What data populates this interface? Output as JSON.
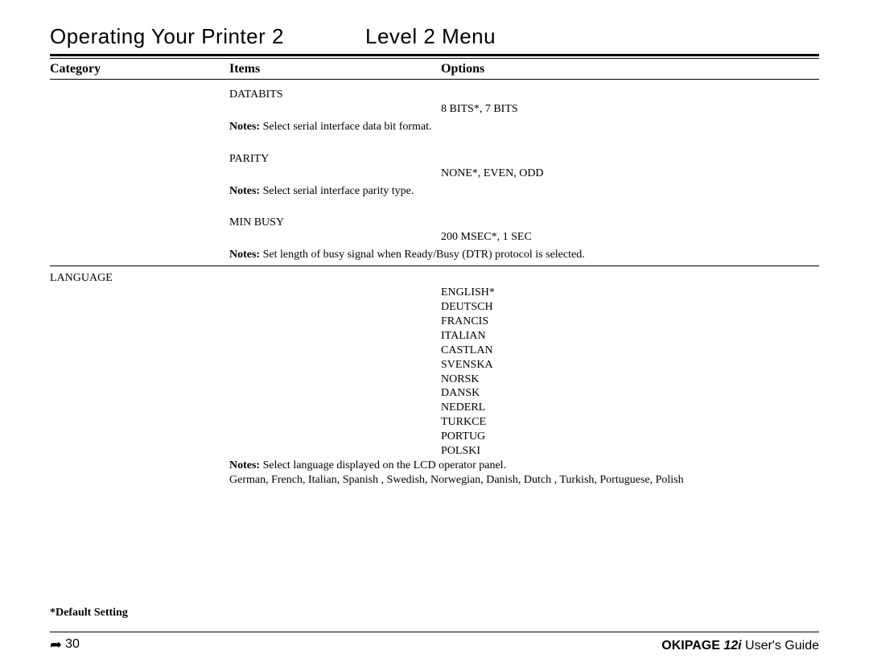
{
  "header": {
    "title_left": "Operating Your Printer 2",
    "title_right": "Level 2 Menu"
  },
  "columns": {
    "category": "Category",
    "items": "Items",
    "options": "Options"
  },
  "entries": {
    "databits": {
      "category": "",
      "item": "DATABITS",
      "options": "8 BITS*, 7 BITS",
      "notes_label": "Notes:",
      "notes": "  Select serial interface data bit format."
    },
    "parity": {
      "category": "",
      "item": "PARITY",
      "options": "NONE*, EVEN, ODD",
      "notes_label": "Notes:",
      "notes": "  Select serial interface parity type."
    },
    "minbusy": {
      "category": "",
      "item": "MIN BUSY",
      "options": "200 MSEC*, 1 SEC",
      "notes_label": "Notes:",
      "notes": "  Set length of busy signal when Ready/Busy (DTR) protocol is selected."
    },
    "language": {
      "category": "LANGUAGE",
      "item": "",
      "options": [
        "ENGLISH*",
        "DEUTSCH",
        "FRANCIS",
        "ITALIAN",
        "CASTLAN",
        "SVENSKA",
        "NORSK",
        "DANSK",
        "NEDERL",
        "TURKCE",
        "PORTUG",
        "POLSKI"
      ],
      "notes_label": "Notes:",
      "notes": " Select language displayed on the LCD operator panel.",
      "notes2": "German, French, Italian, Spanish , Swedish, Norwegian, Danish, Dutch , Turkish, Portuguese, Polish"
    }
  },
  "default_setting": "*Default Setting",
  "footer": {
    "page": "30",
    "brand": "OKIPAGE ",
    "model": "12i",
    "suffix": " User's Guide"
  }
}
